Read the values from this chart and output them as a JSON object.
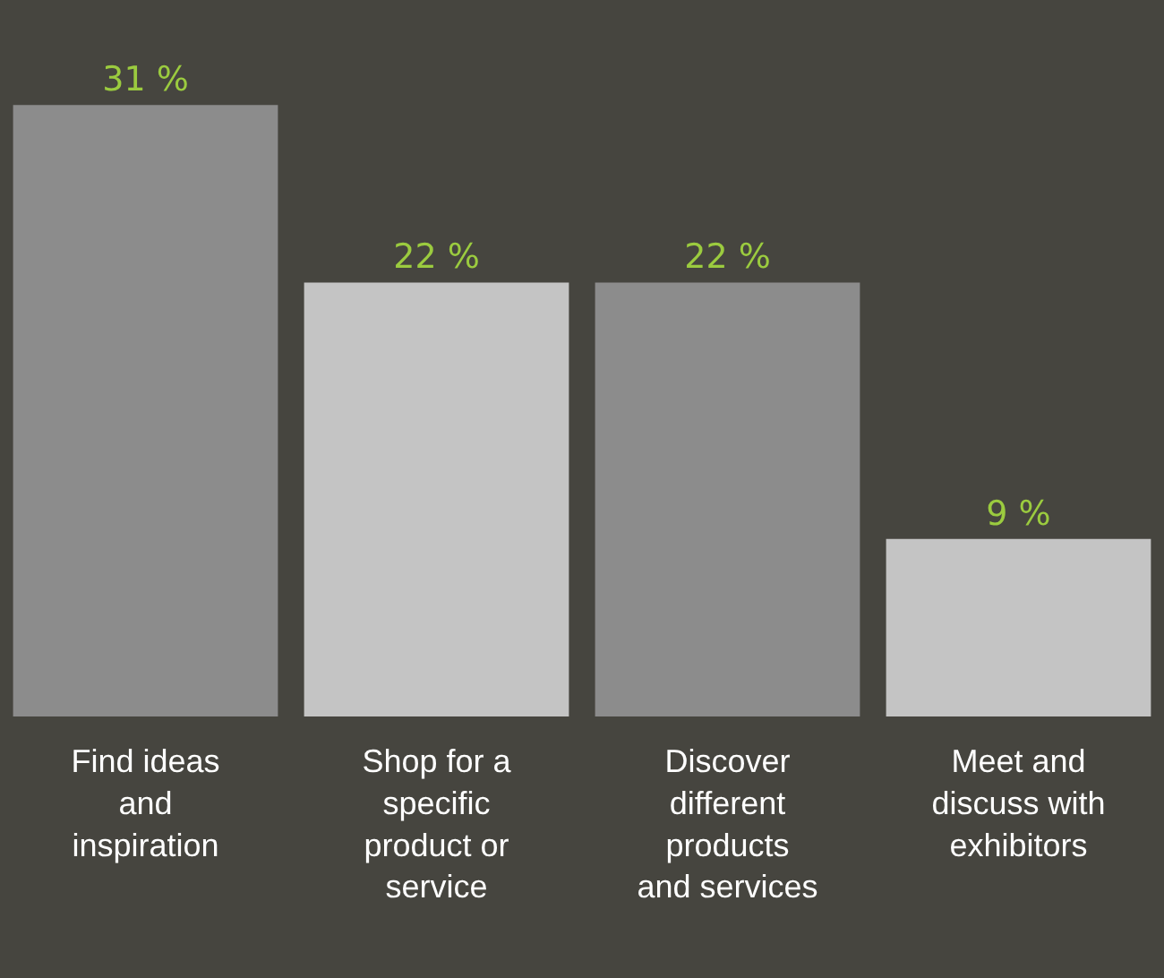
{
  "chart_data": {
    "type": "bar",
    "categories": [
      "Find ideas\nand\ninspiration",
      "Shop for a\nspecific\nproduct or\nservice",
      "Discover\ndifferent\nproducts\nand services",
      "Meet and\ndiscuss with\nexhibitors"
    ],
    "values": [
      31,
      22,
      22,
      9
    ],
    "colors": [
      "#8c8c8c",
      "#c4c4c4",
      "#8c8c8c",
      "#c4c4c4"
    ],
    "value_labels": [
      "31 %",
      "22 %",
      "22 %",
      "9 %"
    ],
    "grid": false,
    "legend": false
  }
}
